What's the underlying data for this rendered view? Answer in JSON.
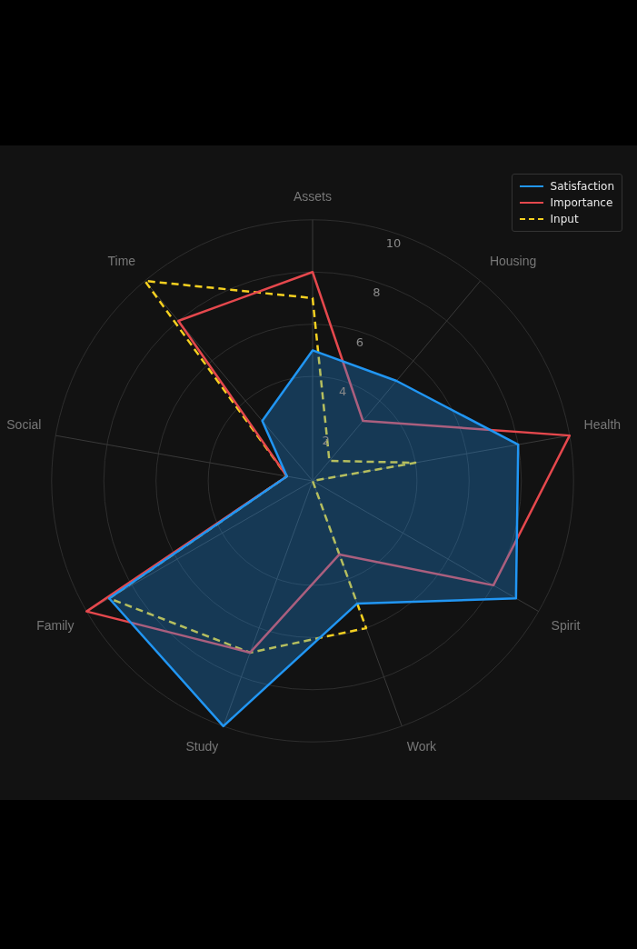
{
  "chart_data": {
    "type": "radar",
    "categories": [
      "Assets",
      "Housing",
      "Health",
      "Spirit",
      "Work",
      "Study",
      "Family",
      "Social",
      "Time"
    ],
    "series": [
      {
        "name": "Satisfaction",
        "type": "area",
        "color": "#2196f3",
        "values": [
          5,
          5,
          8,
          9,
          5,
          10,
          9,
          1,
          3
        ]
      },
      {
        "name": "Importance",
        "color": "#e5484d",
        "values": [
          8,
          3,
          10,
          8,
          3,
          7,
          10,
          1,
          8
        ]
      },
      {
        "name": "Input",
        "color": "#f5d020",
        "line_style": "dashed",
        "values": [
          7,
          1,
          4,
          0,
          6,
          7,
          9,
          1,
          10
        ]
      }
    ],
    "ylim": [
      0,
      10
    ],
    "yticks": [
      2,
      4,
      6,
      8,
      10
    ],
    "grid": true,
    "legend": "top right"
  }
}
